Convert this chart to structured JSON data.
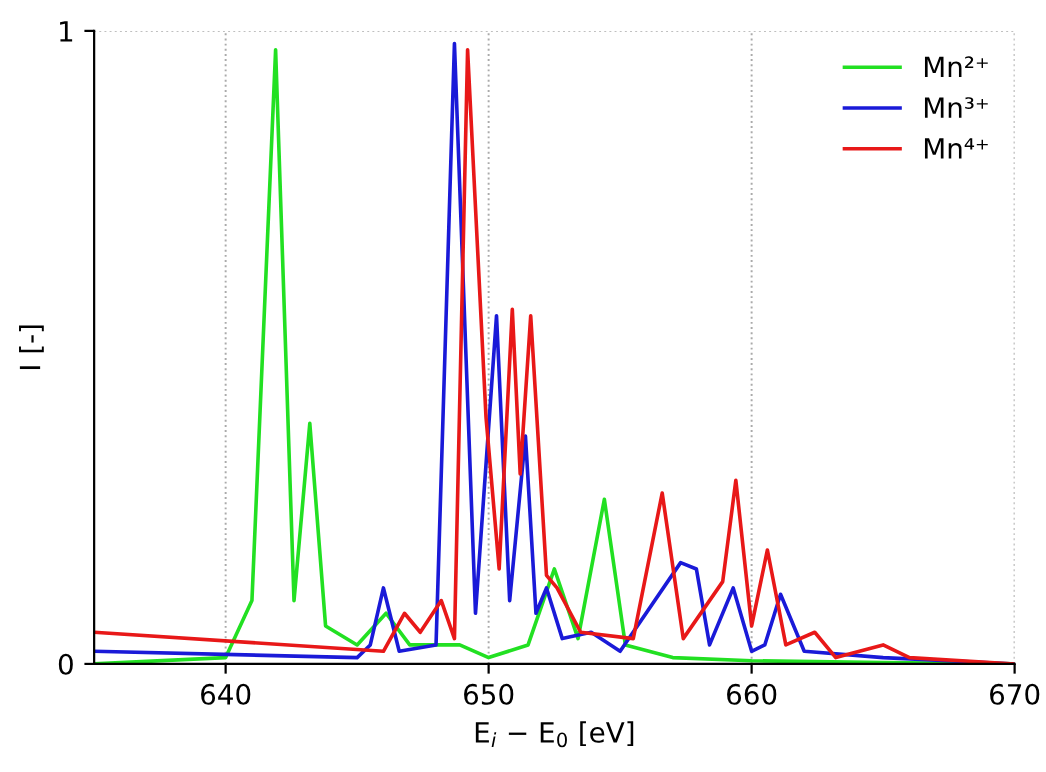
{
  "chart_data": {
    "type": "line",
    "xlabel": "E$_{i}$ − E$_{0}$ [eV]",
    "ylabel": "I [-]",
    "xlim": [
      635,
      670
    ],
    "xticks": [
      640,
      650,
      660,
      670
    ],
    "ylim": [
      0,
      1
    ],
    "yticks": [
      0,
      1
    ],
    "grid": true,
    "line_style": "solid",
    "legend": "top right",
    "series": [
      {
        "name": "Mn²⁺",
        "color": "#22e022",
        "x": [
          635,
          640,
          641,
          641.9,
          642.6,
          643.2,
          643.8,
          645,
          646.1,
          647,
          648.9,
          650,
          651.5,
          652.5,
          653.4,
          654.4,
          655.2,
          657,
          660,
          665,
          670
        ],
        "values": [
          0,
          0.01,
          0.1,
          0.97,
          0.1,
          0.38,
          0.06,
          0.03,
          0.08,
          0.03,
          0.03,
          0.01,
          0.03,
          0.15,
          0.04,
          0.26,
          0.03,
          0.01,
          0.005,
          0.002,
          0
        ]
      },
      {
        "name": "Mn³⁺",
        "color": "#1a1ad8",
        "x": [
          635,
          645,
          645.5,
          646,
          646.6,
          648,
          648.7,
          649.5,
          650.3,
          650.8,
          651.4,
          651.8,
          652.2,
          652.8,
          653.9,
          655,
          657.3,
          657.9,
          658.4,
          659.3,
          660,
          660.5,
          661.1,
          662,
          665,
          670
        ],
        "values": [
          0.02,
          0.01,
          0.03,
          0.12,
          0.02,
          0.03,
          0.98,
          0.08,
          0.55,
          0.1,
          0.36,
          0.08,
          0.12,
          0.04,
          0.05,
          0.02,
          0.16,
          0.15,
          0.03,
          0.12,
          0.02,
          0.03,
          0.11,
          0.02,
          0.01,
          0
        ]
      },
      {
        "name": "Mn⁴⁺",
        "color": "#e81818",
        "x": [
          635,
          646,
          646.8,
          647.4,
          648.2,
          648.7,
          649.2,
          649.9,
          650.4,
          650.9,
          651.2,
          651.6,
          652.2,
          652.6,
          653.5,
          655.5,
          656.6,
          657.4,
          658.9,
          659.4,
          660,
          660.6,
          661.3,
          662.4,
          663.2,
          665,
          666,
          670
        ],
        "values": [
          0.05,
          0.02,
          0.08,
          0.05,
          0.1,
          0.04,
          0.97,
          0.39,
          0.15,
          0.56,
          0.3,
          0.55,
          0.14,
          0.12,
          0.05,
          0.04,
          0.27,
          0.04,
          0.13,
          0.29,
          0.06,
          0.18,
          0.03,
          0.05,
          0.01,
          0.03,
          0.01,
          0
        ]
      }
    ]
  }
}
